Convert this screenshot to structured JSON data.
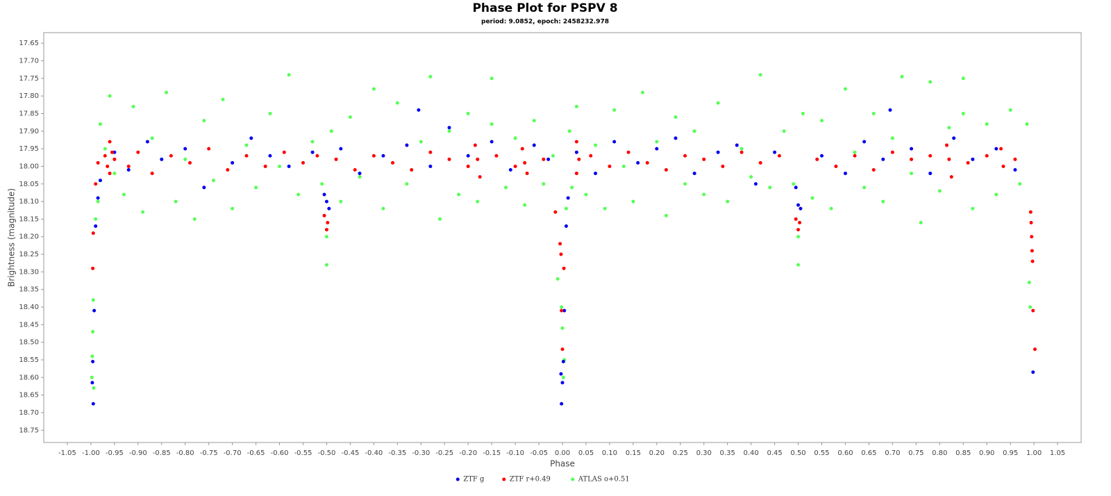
{
  "chart_data": {
    "type": "scatter",
    "title": "Phase Plot for PSPV 8",
    "subtitle": "period: 9.0852, epoch: 2458232.978",
    "x_label": "Phase",
    "y_label": "Brightness (magnitude)",
    "xlim": [
      -1.1,
      1.1
    ],
    "ylim": [
      17.62,
      18.785
    ],
    "y_inverted": true,
    "grid": false,
    "legend_position": "bottom",
    "xticks": [
      -1.05,
      {
        "value": -1.0,
        "label": "-1.00"
      },
      -0.95,
      {
        "value": -0.9,
        "label": "-0.90"
      },
      -0.85,
      {
        "value": -0.8,
        "label": "-0.80"
      },
      -0.75,
      {
        "value": -0.7,
        "label": "-0.70"
      },
      -0.65,
      {
        "value": -0.6,
        "label": "-0.60"
      },
      -0.55,
      {
        "value": -0.5,
        "label": "-0.50"
      },
      -0.45,
      {
        "value": -0.4,
        "label": "-0.40"
      },
      -0.35,
      {
        "value": -0.3,
        "label": "-0.30"
      },
      -0.25,
      {
        "value": -0.2,
        "label": "-0.20"
      },
      -0.15,
      {
        "value": -0.1,
        "label": "-0.10"
      },
      -0.05,
      {
        "value": 0,
        "label": "0.00"
      },
      0.05,
      {
        "value": 0.1,
        "label": "0.10"
      },
      0.15,
      {
        "value": 0.2,
        "label": "0.20"
      },
      0.25,
      {
        "value": 0.3,
        "label": "0.30"
      },
      0.35,
      {
        "value": 0.4,
        "label": "0.40"
      },
      0.45,
      {
        "value": 0.5,
        "label": "0.50"
      },
      0.55,
      {
        "value": 0.6,
        "label": "0.60"
      },
      0.65,
      {
        "value": 0.7,
        "label": "0.70"
      },
      0.75,
      {
        "value": 0.8,
        "label": "0.80"
      },
      0.85,
      {
        "value": 0.9,
        "label": "0.90"
      },
      0.95,
      {
        "value": 1.0,
        "label": "1.00"
      },
      1.05
    ],
    "yticks": [
      17.65,
      {
        "value": 17.7,
        "label": "17.70"
      },
      17.75,
      {
        "value": 17.8,
        "label": "17.80"
      },
      17.85,
      {
        "value": 17.9,
        "label": "17.90"
      },
      17.95,
      {
        "value": 18.0,
        "label": "18.00"
      },
      18.05,
      {
        "value": 18.1,
        "label": "18.10"
      },
      18.15,
      {
        "value": 18.2,
        "label": "18.20"
      },
      18.25,
      {
        "value": 18.3,
        "label": "18.30"
      },
      18.35,
      {
        "value": 18.4,
        "label": "18.40"
      },
      18.45,
      {
        "value": 18.5,
        "label": "18.50"
      },
      18.55,
      {
        "value": 18.6,
        "label": "18.60"
      },
      18.65,
      {
        "value": 18.7,
        "label": "18.70"
      },
      18.75
    ],
    "series": [
      {
        "name": "ATLAS o+0.51",
        "color": "#55ff55",
        "x": [
          -0.998,
          -0.997,
          -0.996,
          -0.995,
          -0.994,
          -0.99,
          -0.985,
          -0.98,
          -0.97,
          -0.96,
          -0.95,
          -0.93,
          -0.91,
          -0.89,
          -0.87,
          -0.84,
          -0.82,
          -0.8,
          -0.78,
          -0.76,
          -0.74,
          -0.72,
          -0.7,
          -0.67,
          -0.65,
          -0.62,
          -0.6,
          -0.58,
          -0.56,
          -0.53,
          -0.51,
          -0.5,
          -0.5,
          -0.49,
          -0.47,
          -0.45,
          -0.43,
          -0.4,
          -0.38,
          -0.35,
          -0.33,
          -0.3,
          -0.28,
          -0.26,
          -0.24,
          -0.22,
          -0.2,
          -0.18,
          -0.15,
          -0.15,
          -0.12,
          -0.1,
          -0.08,
          -0.06,
          -0.04,
          -0.02,
          -0.01,
          -0.002,
          0.0,
          0.002,
          0.004,
          0.008,
          0.015,
          0.02,
          0.03,
          0.05,
          0.07,
          0.09,
          0.11,
          0.13,
          0.15,
          0.17,
          0.2,
          0.22,
          0.24,
          0.26,
          0.28,
          0.3,
          0.33,
          0.35,
          0.38,
          0.4,
          0.42,
          0.44,
          0.47,
          0.49,
          0.5,
          0.5,
          0.51,
          0.53,
          0.55,
          0.57,
          0.6,
          0.62,
          0.64,
          0.66,
          0.68,
          0.7,
          0.72,
          0.74,
          0.76,
          0.78,
          0.8,
          0.82,
          0.85,
          0.85,
          0.87,
          0.9,
          0.92,
          0.95,
          0.97,
          0.985,
          0.99,
          0.992
        ],
        "values": [
          18.6,
          18.54,
          18.47,
          18.38,
          18.63,
          18.15,
          18.1,
          17.88,
          17.95,
          17.8,
          18.02,
          18.08,
          17.83,
          18.13,
          17.92,
          17.79,
          18.1,
          17.98,
          18.15,
          17.87,
          18.04,
          17.81,
          18.12,
          17.94,
          18.06,
          17.85,
          18.0,
          17.74,
          18.08,
          17.93,
          18.05,
          18.2,
          18.28,
          17.9,
          18.1,
          17.86,
          18.03,
          17.78,
          18.12,
          17.82,
          18.05,
          17.93,
          17.745,
          18.15,
          17.9,
          18.08,
          17.85,
          18.1,
          17.75,
          17.88,
          18.06,
          17.92,
          18.11,
          17.87,
          18.05,
          17.97,
          18.32,
          18.4,
          18.46,
          18.6,
          18.55,
          18.12,
          17.9,
          18.06,
          17.83,
          18.08,
          17.94,
          18.12,
          17.84,
          18.0,
          18.1,
          17.79,
          17.93,
          18.14,
          17.86,
          18.05,
          17.9,
          18.08,
          17.82,
          18.1,
          17.95,
          18.03,
          17.74,
          18.06,
          17.9,
          18.05,
          18.2,
          18.28,
          17.85,
          18.09,
          17.87,
          18.12,
          17.78,
          17.96,
          18.06,
          17.85,
          18.1,
          17.92,
          17.745,
          18.02,
          18.16,
          17.76,
          18.07,
          17.89,
          17.75,
          17.85,
          18.12,
          17.88,
          18.08,
          17.84,
          18.05,
          17.88,
          18.33,
          18.4
        ]
      },
      {
        "name": "ZTF g",
        "color": "#0000ee",
        "x": [
          -0.997,
          -0.996,
          -0.995,
          -0.993,
          -0.99,
          -0.985,
          -0.98,
          -0.95,
          -0.92,
          -0.88,
          -0.85,
          -0.8,
          -0.76,
          -0.7,
          -0.66,
          -0.62,
          -0.58,
          -0.53,
          -0.505,
          -0.5,
          -0.495,
          -0.47,
          -0.43,
          -0.38,
          -0.33,
          -0.305,
          -0.28,
          -0.24,
          -0.2,
          -0.15,
          -0.11,
          -0.06,
          -0.03,
          -0.003,
          -0.002,
          0.0,
          0.002,
          0.004,
          0.008,
          0.012,
          0.03,
          0.07,
          0.11,
          0.16,
          0.2,
          0.24,
          0.28,
          0.33,
          0.37,
          0.41,
          0.45,
          0.495,
          0.5,
          0.505,
          0.55,
          0.6,
          0.64,
          0.68,
          0.695,
          0.74,
          0.78,
          0.83,
          0.87,
          0.92,
          0.96,
          0.998
        ],
        "values": [
          18.615,
          18.555,
          18.675,
          18.41,
          18.17,
          18.09,
          18.04,
          17.96,
          18.01,
          17.93,
          17.98,
          17.95,
          18.06,
          17.99,
          17.92,
          17.97,
          18.0,
          17.96,
          18.08,
          18.1,
          18.12,
          17.95,
          18.02,
          17.97,
          17.94,
          17.84,
          18.0,
          17.89,
          17.97,
          17.93,
          18.01,
          17.94,
          17.98,
          18.59,
          18.675,
          18.615,
          18.555,
          18.41,
          18.17,
          18.09,
          17.96,
          18.02,
          17.93,
          17.99,
          17.95,
          17.92,
          18.02,
          17.96,
          17.94,
          18.05,
          17.96,
          18.06,
          18.11,
          18.12,
          17.97,
          18.02,
          17.93,
          17.98,
          17.84,
          17.95,
          18.02,
          17.92,
          17.98,
          17.95,
          18.01,
          18.585
        ]
      },
      {
        "name": "ZTF r+0.49",
        "color": "#ff0000",
        "x": [
          -0.996,
          -0.995,
          -0.99,
          -0.985,
          -0.97,
          -0.965,
          -0.96,
          -0.96,
          -0.955,
          -0.95,
          -0.92,
          -0.9,
          -0.87,
          -0.83,
          -0.79,
          -0.75,
          -0.71,
          -0.67,
          -0.63,
          -0.59,
          -0.55,
          -0.52,
          -0.505,
          -0.5,
          -0.498,
          -0.48,
          -0.44,
          -0.4,
          -0.36,
          -0.32,
          -0.28,
          -0.24,
          -0.2,
          -0.185,
          -0.18,
          -0.175,
          -0.14,
          -0.1,
          -0.085,
          -0.08,
          -0.075,
          -0.04,
          -0.015,
          -0.005,
          -0.003,
          -0.002,
          0.0,
          0.003,
          0.03,
          0.03,
          0.035,
          0.06,
          0.1,
          0.14,
          0.18,
          0.22,
          0.26,
          0.3,
          0.34,
          0.38,
          0.42,
          0.46,
          0.495,
          0.5,
          0.503,
          0.54,
          0.58,
          0.62,
          0.66,
          0.7,
          0.74,
          0.78,
          0.815,
          0.82,
          0.825,
          0.86,
          0.9,
          0.93,
          0.935,
          0.96,
          0.993,
          0.994,
          0.995,
          0.996,
          0.997,
          0.998,
          1.002
        ],
        "values": [
          18.29,
          18.19,
          18.05,
          17.99,
          17.97,
          18.0,
          17.93,
          18.02,
          17.96,
          17.98,
          18.0,
          17.96,
          18.02,
          17.97,
          17.99,
          17.95,
          18.01,
          17.97,
          18.0,
          17.96,
          17.99,
          17.97,
          18.14,
          18.18,
          18.16,
          17.98,
          18.01,
          17.97,
          17.99,
          18.01,
          17.96,
          17.98,
          18.0,
          17.94,
          17.98,
          18.03,
          17.97,
          18.0,
          17.95,
          17.99,
          18.02,
          17.98,
          18.13,
          18.22,
          18.25,
          18.41,
          18.52,
          18.29,
          17.93,
          18.02,
          17.98,
          17.97,
          18.0,
          17.96,
          17.99,
          18.01,
          17.97,
          17.98,
          18.0,
          17.96,
          17.99,
          17.97,
          18.15,
          18.18,
          18.16,
          17.98,
          18.0,
          17.97,
          18.01,
          17.96,
          17.98,
          17.97,
          17.94,
          17.98,
          18.03,
          17.99,
          17.97,
          17.95,
          18.0,
          17.98,
          18.13,
          18.16,
          18.2,
          18.24,
          18.27,
          18.41,
          18.52
        ]
      }
    ]
  }
}
